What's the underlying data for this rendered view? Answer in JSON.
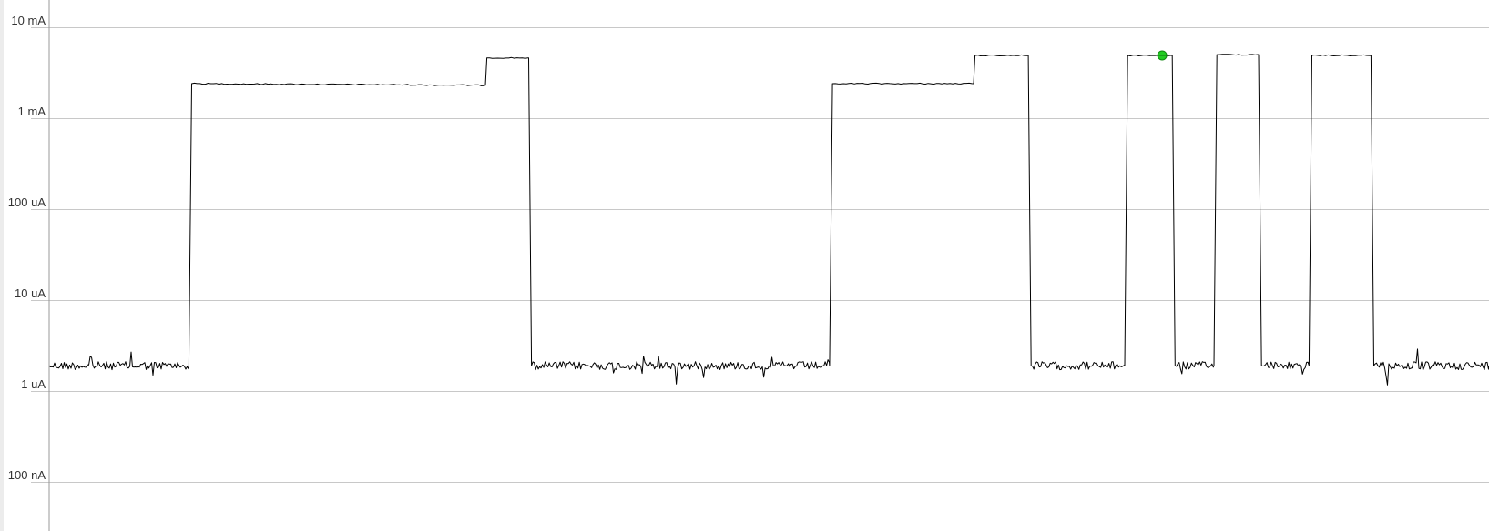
{
  "chart_data": {
    "type": "line",
    "title": "",
    "xlabel": "",
    "ylabel": "",
    "y_scale": "log",
    "y_unit": "A",
    "ylim": [
      5e-08,
      0.01
    ],
    "y_ticks": [
      {
        "value": 0.01,
        "label": "10 mA"
      },
      {
        "value": 0.001,
        "label": "1 mA"
      },
      {
        "value": 0.0001,
        "label": "100 uA"
      },
      {
        "value": 1e-05,
        "label": "10 uA"
      },
      {
        "value": 1e-06,
        "label": "1 uA"
      },
      {
        "value": 1e-07,
        "label": "100 nA"
      }
    ],
    "grid": true,
    "x_range": [
      0,
      100
    ],
    "series": [
      {
        "color": "#000000",
        "baseline_noise": true,
        "points": [
          {
            "x": 0.0,
            "y": 1.9e-06
          },
          {
            "x": 9.7,
            "y": 1.9e-06
          },
          {
            "x": 9.9,
            "y": 0.0024
          },
          {
            "x": 30.3,
            "y": 0.0023
          },
          {
            "x": 30.4,
            "y": 0.0046
          },
          {
            "x": 33.3,
            "y": 0.0046
          },
          {
            "x": 33.5,
            "y": 1.9e-06
          },
          {
            "x": 54.2,
            "y": 1.9e-06
          },
          {
            "x": 54.4,
            "y": 0.0024
          },
          {
            "x": 64.2,
            "y": 0.0024
          },
          {
            "x": 64.3,
            "y": 0.0049
          },
          {
            "x": 68.0,
            "y": 0.0049
          },
          {
            "x": 68.2,
            "y": 1.9e-06
          },
          {
            "x": 74.7,
            "y": 1.9e-06
          },
          {
            "x": 74.9,
            "y": 0.0049
          },
          {
            "x": 78.0,
            "y": 0.0049
          },
          {
            "x": 78.2,
            "y": 1.9e-06
          },
          {
            "x": 80.9,
            "y": 1.9e-06
          },
          {
            "x": 81.1,
            "y": 0.005
          },
          {
            "x": 84.0,
            "y": 0.005
          },
          {
            "x": 84.2,
            "y": 1.9e-06
          },
          {
            "x": 87.5,
            "y": 1.9e-06
          },
          {
            "x": 87.7,
            "y": 0.0049
          },
          {
            "x": 91.8,
            "y": 0.0049
          },
          {
            "x": 92.0,
            "y": 1.9e-06
          },
          {
            "x": 100.0,
            "y": 1.9e-06
          }
        ]
      }
    ],
    "marker": {
      "x": 77.3,
      "y": 0.0049,
      "color": "#22cc22"
    }
  }
}
